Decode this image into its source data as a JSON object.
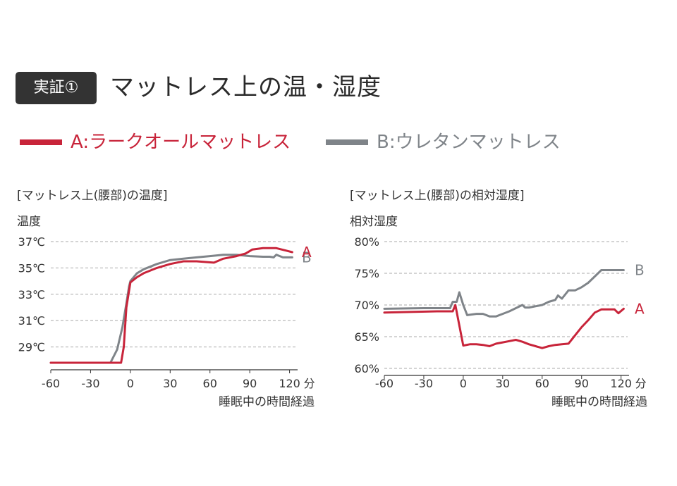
{
  "header": {
    "badge": "実証①",
    "title": "マットレス上の温・湿度"
  },
  "legend": [
    {
      "label": "A:ラークオールマットレス",
      "color": "#c8243a"
    },
    {
      "label": "B:ウレタンマットレス",
      "color": "#7f8489"
    }
  ],
  "chart_data": [
    {
      "type": "line",
      "title": "[マットレス上(腰部)の温度]",
      "ylabel": "温度",
      "xlabel": "睡眠中の時間経過",
      "x_unit": "分",
      "xlim": [
        -60,
        125
      ],
      "ylim": [
        27.8,
        37
      ],
      "xticks": [
        -60,
        -30,
        0,
        30,
        60,
        90,
        120
      ],
      "xtick_labels": [
        "-60",
        "-30",
        "0",
        "30",
        "60",
        "90",
        "120"
      ],
      "yticks": [
        29,
        31,
        33,
        35,
        37
      ],
      "ytick_labels": [
        "29℃",
        "31℃",
        "33℃",
        "35℃",
        "37℃"
      ],
      "grid": "horizontal-dashed",
      "series": [
        {
          "name": "A",
          "color": "#c8243a",
          "x": [
            -60,
            -15,
            -7,
            -5,
            -3,
            0,
            5,
            10,
            20,
            30,
            40,
            50,
            63,
            70,
            80,
            87,
            92,
            100,
            110,
            118,
            122
          ],
          "y": [
            27.8,
            27.8,
            27.8,
            29.0,
            32.0,
            33.9,
            34.3,
            34.6,
            35.0,
            35.3,
            35.5,
            35.5,
            35.4,
            35.7,
            35.9,
            36.1,
            36.4,
            36.5,
            36.5,
            36.3,
            36.2
          ]
        },
        {
          "name": "B",
          "color": "#7f8489",
          "x": [
            -60,
            -15,
            -10,
            -6,
            -3,
            -1,
            0,
            5,
            10,
            20,
            30,
            40,
            50,
            60,
            70,
            80,
            90,
            100,
            105,
            108,
            110,
            115,
            122
          ],
          "y": [
            27.8,
            27.8,
            28.8,
            30.5,
            32.3,
            33.6,
            34.0,
            34.6,
            34.9,
            35.3,
            35.6,
            35.7,
            35.8,
            35.9,
            36.0,
            36.0,
            35.9,
            35.85,
            35.85,
            35.8,
            36.0,
            35.8,
            35.8
          ]
        }
      ],
      "annotations": [
        "A",
        "B"
      ]
    },
    {
      "type": "line",
      "title": "[マットレス上(腰部)の相対湿度]",
      "ylabel": "相対湿度",
      "xlabel": "睡眠中の時間経過",
      "x_unit": "分",
      "xlim": [
        -60,
        125
      ],
      "ylim": [
        60,
        80
      ],
      "xticks": [
        -60,
        -30,
        0,
        30,
        60,
        90,
        120
      ],
      "xtick_labels": [
        "-60",
        "-30",
        "0",
        "30",
        "60",
        "90",
        "120"
      ],
      "yticks": [
        60,
        65,
        70,
        75,
        80
      ],
      "ytick_labels": [
        "60%",
        "65%",
        "70%",
        "75%",
        "80%"
      ],
      "grid": "horizontal-dashed",
      "series": [
        {
          "name": "A",
          "color": "#c8243a",
          "x": [
            -60,
            -40,
            -20,
            -8,
            -6,
            -3,
            0,
            5,
            10,
            15,
            20,
            25,
            30,
            35,
            40,
            45,
            50,
            55,
            60,
            65,
            70,
            75,
            80,
            85,
            90,
            95,
            100,
            105,
            110,
            115,
            118,
            122
          ],
          "y": [
            68.8,
            68.9,
            69.0,
            69.0,
            70.0,
            66.8,
            63.6,
            63.8,
            63.8,
            63.7,
            63.5,
            63.9,
            64.1,
            64.3,
            64.5,
            64.2,
            63.8,
            63.5,
            63.2,
            63.5,
            63.7,
            63.8,
            63.9,
            65.2,
            66.5,
            67.6,
            68.8,
            69.3,
            69.3,
            69.3,
            68.7,
            69.4
          ]
        },
        {
          "name": "B",
          "color": "#7f8489",
          "x": [
            -60,
            -30,
            -15,
            -10,
            -8,
            -5,
            -3,
            0,
            3,
            10,
            15,
            20,
            25,
            30,
            35,
            40,
            45,
            47,
            50,
            55,
            60,
            65,
            70,
            72,
            75,
            80,
            85,
            90,
            95,
            100,
            105,
            110,
            115,
            120,
            122
          ],
          "y": [
            69.4,
            69.5,
            69.5,
            69.5,
            70.5,
            70.5,
            72.0,
            70.0,
            68.4,
            68.6,
            68.6,
            68.2,
            68.2,
            68.6,
            69.0,
            69.5,
            70.0,
            69.6,
            69.6,
            69.8,
            70.0,
            70.5,
            70.8,
            71.5,
            71.0,
            72.3,
            72.3,
            72.8,
            73.5,
            74.5,
            75.5,
            75.5,
            75.5,
            75.5,
            75.5
          ]
        }
      ],
      "annotations": [
        "A",
        "B"
      ]
    }
  ]
}
